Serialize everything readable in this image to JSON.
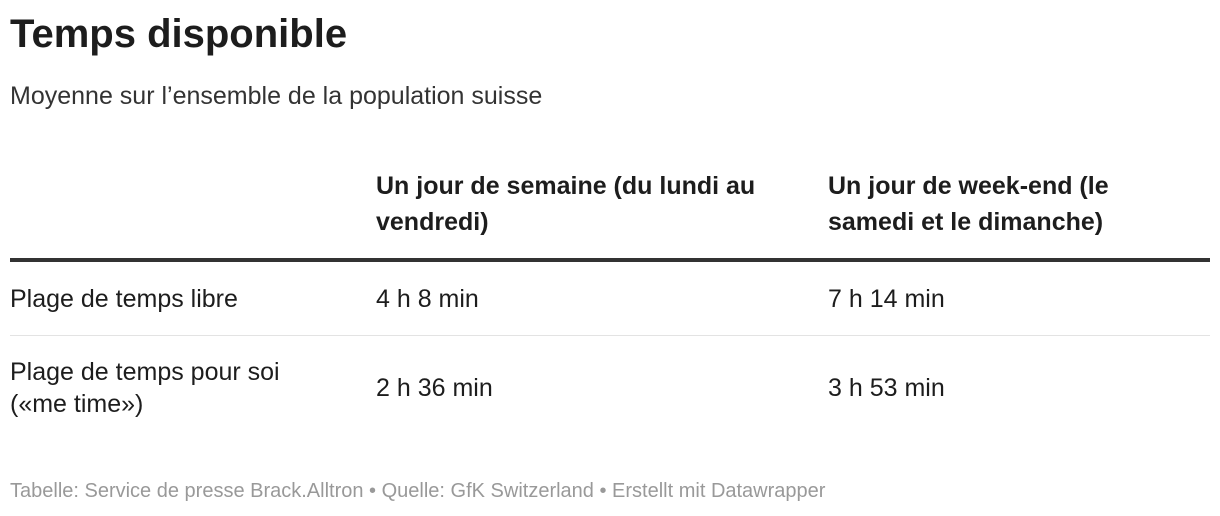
{
  "header": {
    "title": "Temps disponible",
    "subtitle": "Moyenne sur l’ensemble de la population suisse"
  },
  "table": {
    "columns": [
      "Un jour de semaine (du lundi au vendredi)",
      "Un jour de week-end (le samedi et le dimanche)"
    ],
    "rows": [
      [
        "Plage de temps libre",
        "4 h 8 min",
        "7 h 14 min"
      ],
      [
        "Plage de temps pour soi («me time»)",
        "2 h 36 min",
        "3 h 53 min"
      ]
    ]
  },
  "footer": "Tabelle: Service de presse Brack.Alltron • Quelle: GfK Switzerland • Erstellt mit Datawrapper"
}
